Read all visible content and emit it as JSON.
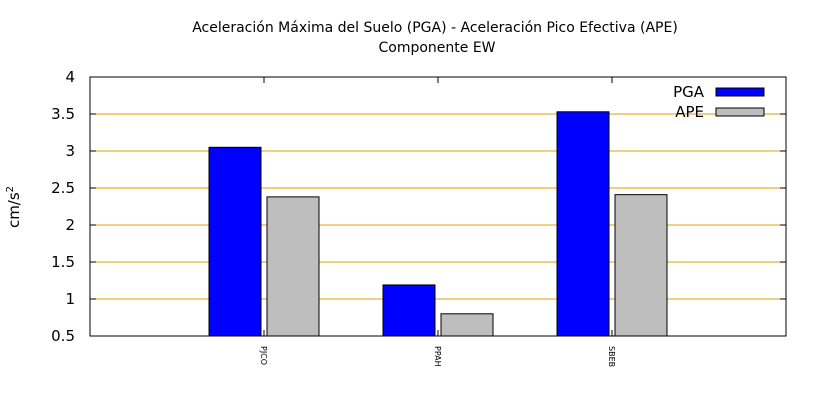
{
  "chart_data": {
    "type": "bar",
    "title": "Aceleración Máxima del Suelo (PGA) -  Aceleración Pico Efectiva (APE)",
    "subtitle": "Componente EW",
    "xlabel": "",
    "ylabel_base": "cm/s",
    "ylabel_exp": "2",
    "categories": [
      "PJCO",
      "PPAH",
      "SBEB"
    ],
    "series": [
      {
        "name": "PGA",
        "color": "#0000ff",
        "values": [
          3.05,
          1.19,
          3.53
        ]
      },
      {
        "name": "APE",
        "color": "#bebebe",
        "values": [
          2.38,
          0.8,
          2.41
        ]
      }
    ],
    "ylim": [
      0.5,
      4
    ],
    "yticks": [
      {
        "value": 0.5,
        "label": "0.5"
      },
      {
        "value": 1,
        "label": "1"
      },
      {
        "value": 1.5,
        "label": "1.5"
      },
      {
        "value": 2,
        "label": "2"
      },
      {
        "value": 2.5,
        "label": "2.5"
      },
      {
        "value": 3,
        "label": "3"
      },
      {
        "value": 3.5,
        "label": "3.5"
      },
      {
        "value": 4,
        "label": "4"
      }
    ],
    "grid": true,
    "grid_color": "#e0a000",
    "legend_position": "top-right"
  }
}
